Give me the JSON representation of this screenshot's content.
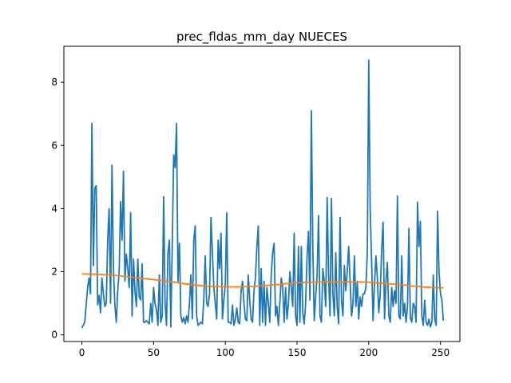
{
  "chart_data": {
    "type": "line",
    "title": "prec_fldas_mm_day NUECES",
    "xlabel": "",
    "ylabel": "",
    "xlim": [
      -12.55,
      263.55
    ],
    "ylim": [
      -0.21,
      9.14
    ],
    "xticks": [
      0,
      50,
      100,
      150,
      200,
      250
    ],
    "yticks": [
      0,
      2,
      4,
      6,
      8
    ],
    "grid": false,
    "legend": "none",
    "series": [
      {
        "color": "#1f77b4",
        "points": [
          [
            0,
            0.22
          ],
          [
            2,
            0.4
          ],
          [
            4,
            1.5
          ],
          [
            5,
            1.8
          ],
          [
            6,
            1.3
          ],
          [
            7,
            6.7
          ],
          [
            8,
            2.2
          ],
          [
            9,
            4.65
          ],
          [
            10,
            4.72
          ],
          [
            11,
            0.95
          ],
          [
            12,
            1.25
          ],
          [
            13,
            0.7
          ],
          [
            14,
            1.8
          ],
          [
            15,
            1.3
          ],
          [
            16,
            0.9
          ],
          [
            17,
            1.0
          ],
          [
            18,
            3.0
          ],
          [
            19,
            4.0
          ],
          [
            20,
            1.0
          ],
          [
            21,
            5.37
          ],
          [
            22,
            2.1
          ],
          [
            23,
            0.95
          ],
          [
            24,
            0.4
          ],
          [
            25,
            1.4
          ],
          [
            26,
            2.0
          ],
          [
            27,
            4.22
          ],
          [
            28,
            3.0
          ],
          [
            29,
            5.18
          ],
          [
            30,
            1.7
          ],
          [
            31,
            2.56
          ],
          [
            32,
            2.1
          ],
          [
            33,
            1.5
          ],
          [
            34,
            3.87
          ],
          [
            35,
            0.6
          ],
          [
            36,
            2.4
          ],
          [
            37,
            1.4
          ],
          [
            38,
            0.9
          ],
          [
            39,
            2.4
          ],
          [
            40,
            1.2
          ],
          [
            41,
            1.1
          ],
          [
            42,
            2.25
          ],
          [
            43,
            0.4
          ],
          [
            44,
            0.4
          ],
          [
            45,
            0.45
          ],
          [
            46,
            0.4
          ],
          [
            47,
            0.35
          ],
          [
            48,
            1.0
          ],
          [
            49,
            0.4
          ],
          [
            50,
            1.5
          ],
          [
            51,
            1.0
          ],
          [
            52,
            0.8
          ],
          [
            53,
            0.3
          ],
          [
            54,
            1.9
          ],
          [
            55,
            0.4
          ],
          [
            56,
            0.6
          ],
          [
            57,
            4.38
          ],
          [
            58,
            1.0
          ],
          [
            59,
            0.3
          ],
          [
            60,
            2.6
          ],
          [
            61,
            3.0
          ],
          [
            62,
            0.25
          ],
          [
            63,
            2.8
          ],
          [
            64,
            5.7
          ],
          [
            65,
            5.3
          ],
          [
            66,
            6.7
          ],
          [
            67,
            1.7
          ],
          [
            68,
            2.9
          ],
          [
            69,
            0.6
          ],
          [
            70,
            0.4
          ],
          [
            71,
            0.55
          ],
          [
            72,
            0.35
          ],
          [
            73,
            0.6
          ],
          [
            74,
            0.4
          ],
          [
            75,
            1.0
          ],
          [
            76,
            1.9
          ],
          [
            77,
            0.5
          ],
          [
            78,
            3.0
          ],
          [
            79,
            3.45
          ],
          [
            80,
            0.6
          ],
          [
            81,
            0.3
          ],
          [
            82,
            0.35
          ],
          [
            83,
            0.4
          ],
          [
            84,
            0.35
          ],
          [
            85,
            1.1
          ],
          [
            86,
            2.5
          ],
          [
            87,
            1.0
          ],
          [
            88,
            0.9
          ],
          [
            89,
            1.3
          ],
          [
            90,
            3.72
          ],
          [
            91,
            2.6
          ],
          [
            92,
            1.5
          ],
          [
            93,
            1.0
          ],
          [
            94,
            0.5
          ],
          [
            95,
            3.0
          ],
          [
            96,
            2.1
          ],
          [
            97,
            3.22
          ],
          [
            98,
            0.5
          ],
          [
            99,
            1.1
          ],
          [
            100,
            1.6
          ],
          [
            101,
            3.87
          ],
          [
            102,
            0.4
          ],
          [
            103,
            0.4
          ],
          [
            104,
            0.35
          ],
          [
            105,
            0.95
          ],
          [
            106,
            0.3
          ],
          [
            107,
            0.5
          ],
          [
            108,
            0.85
          ],
          [
            109,
            0.4
          ],
          [
            110,
            0.35
          ],
          [
            111,
            1.4
          ],
          [
            112,
            1.7
          ],
          [
            113,
            1.0
          ],
          [
            114,
            0.5
          ],
          [
            115,
            0.45
          ],
          [
            116,
            1.9
          ],
          [
            117,
            1.1
          ],
          [
            118,
            0.5
          ],
          [
            119,
            0.4
          ],
          [
            120,
            1.4
          ],
          [
            121,
            1.8
          ],
          [
            122,
            2.8
          ],
          [
            123,
            3.45
          ],
          [
            124,
            0.3
          ],
          [
            125,
            2.1
          ],
          [
            126,
            0.4
          ],
          [
            127,
            1.7
          ],
          [
            128,
            0.3
          ],
          [
            129,
            1.5
          ],
          [
            130,
            1.0
          ],
          [
            131,
            0.4
          ],
          [
            132,
            1.9
          ],
          [
            133,
            2.6
          ],
          [
            134,
            2.9
          ],
          [
            135,
            0.6
          ],
          [
            136,
            0.9
          ],
          [
            137,
            0.3
          ],
          [
            138,
            1.0
          ],
          [
            139,
            1.8
          ],
          [
            140,
            1.5
          ],
          [
            141,
            0.4
          ],
          [
            142,
            1.5
          ],
          [
            143,
            0.5
          ],
          [
            144,
            1.0
          ],
          [
            145,
            2.0
          ],
          [
            146,
            1.5
          ],
          [
            147,
            0.9
          ],
          [
            148,
            3.22
          ],
          [
            149,
            0.6
          ],
          [
            150,
            0.3
          ],
          [
            151,
            2.8
          ],
          [
            152,
            0.4
          ],
          [
            153,
            2.8
          ],
          [
            154,
            0.7
          ],
          [
            155,
            0.35
          ],
          [
            156,
            1.0
          ],
          [
            157,
            2.5
          ],
          [
            158,
            3.28
          ],
          [
            159,
            1.1
          ],
          [
            160,
            7.1
          ],
          [
            161,
            2.8
          ],
          [
            162,
            0.45
          ],
          [
            163,
            1.2
          ],
          [
            164,
            1.9
          ],
          [
            165,
            3.78
          ],
          [
            166,
            0.6
          ],
          [
            167,
            0.4
          ],
          [
            168,
            2.1
          ],
          [
            169,
            1.7
          ],
          [
            170,
            0.9
          ],
          [
            171,
            4.35
          ],
          [
            172,
            1.9
          ],
          [
            173,
            0.6
          ],
          [
            174,
            4.32
          ],
          [
            175,
            1.3
          ],
          [
            176,
            0.6
          ],
          [
            177,
            2.6
          ],
          [
            178,
            0.9
          ],
          [
            179,
            0.35
          ],
          [
            180,
            3.72
          ],
          [
            181,
            1.1
          ],
          [
            182,
            0.6
          ],
          [
            183,
            2.2
          ],
          [
            184,
            1.4
          ],
          [
            185,
            2.0
          ],
          [
            186,
            2.8
          ],
          [
            187,
            1.7
          ],
          [
            188,
            0.6
          ],
          [
            189,
            1.0
          ],
          [
            190,
            2.5
          ],
          [
            191,
            0.9
          ],
          [
            192,
            1.7
          ],
          [
            193,
            0.5
          ],
          [
            194,
            1.2
          ],
          [
            195,
            0.9
          ],
          [
            196,
            1.3
          ],
          [
            197,
            1.3
          ],
          [
            198,
            1.5
          ],
          [
            199,
            2.6
          ],
          [
            200,
            8.7
          ],
          [
            201,
            4.0
          ],
          [
            202,
            2.3
          ],
          [
            203,
            0.45
          ],
          [
            204,
            1.6
          ],
          [
            205,
            2.5
          ],
          [
            206,
            1.8
          ],
          [
            207,
            0.7
          ],
          [
            208,
            1.3
          ],
          [
            209,
            2.7
          ],
          [
            210,
            3.57
          ],
          [
            211,
            0.5
          ],
          [
            212,
            1.7
          ],
          [
            213,
            2.3
          ],
          [
            214,
            0.6
          ],
          [
            215,
            0.4
          ],
          [
            216,
            1.5
          ],
          [
            217,
            0.9
          ],
          [
            218,
            1.4
          ],
          [
            219,
            1.0
          ],
          [
            220,
            4.4
          ],
          [
            221,
            0.6
          ],
          [
            222,
            0.5
          ],
          [
            223,
            2.5
          ],
          [
            224,
            0.6
          ],
          [
            225,
            1.0
          ],
          [
            226,
            0.4
          ],
          [
            227,
            0.9
          ],
          [
            228,
            3.37
          ],
          [
            229,
            0.55
          ],
          [
            230,
            0.4
          ],
          [
            231,
            1.0
          ],
          [
            232,
            0.9
          ],
          [
            233,
            0.4
          ],
          [
            234,
            4.2
          ],
          [
            235,
            2.8
          ],
          [
            236,
            3.6
          ],
          [
            237,
            0.6
          ],
          [
            238,
            0.3
          ],
          [
            239,
            1.1
          ],
          [
            240,
            0.4
          ],
          [
            241,
            0.3
          ],
          [
            242,
            0.5
          ],
          [
            243,
            0.25
          ],
          [
            244,
            0.4
          ],
          [
            245,
            1.9
          ],
          [
            246,
            0.5
          ],
          [
            247,
            0.3
          ],
          [
            248,
            3.92
          ],
          [
            249,
            2.0
          ],
          [
            250,
            1.3
          ],
          [
            251,
            1.1
          ],
          [
            252,
            0.45
          ]
        ]
      },
      {
        "color": "#ff7f0e",
        "points": [
          [
            0,
            1.93
          ],
          [
            10,
            1.92
          ],
          [
            20,
            1.9
          ],
          [
            30,
            1.85
          ],
          [
            40,
            1.8
          ],
          [
            50,
            1.75
          ],
          [
            60,
            1.7
          ],
          [
            70,
            1.63
          ],
          [
            80,
            1.57
          ],
          [
            90,
            1.53
          ],
          [
            100,
            1.52
          ],
          [
            110,
            1.52
          ],
          [
            120,
            1.53
          ],
          [
            130,
            1.57
          ],
          [
            140,
            1.61
          ],
          [
            150,
            1.65
          ],
          [
            160,
            1.67
          ],
          [
            170,
            1.68
          ],
          [
            180,
            1.68
          ],
          [
            190,
            1.68
          ],
          [
            200,
            1.67
          ],
          [
            210,
            1.63
          ],
          [
            220,
            1.6
          ],
          [
            230,
            1.55
          ],
          [
            240,
            1.51
          ],
          [
            252,
            1.49
          ]
        ]
      }
    ]
  }
}
